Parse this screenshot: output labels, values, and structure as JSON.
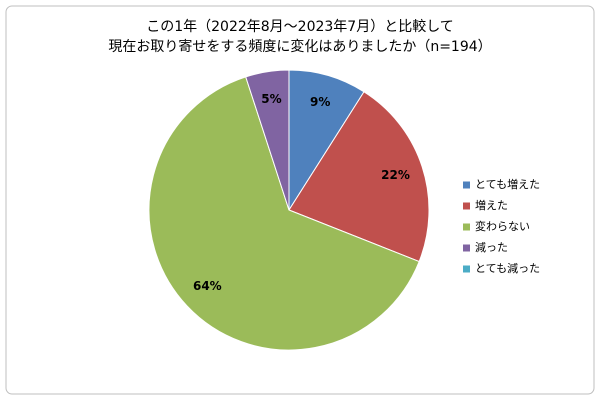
{
  "chart_data": {
    "type": "pie",
    "title": [
      "この1年（2022年8月～2023年7月）と比較して",
      "現在お取り寄せをする頻度に変化はありましたか（n=194）"
    ],
    "categories": [
      "とても増えた",
      "増えた",
      "変わらない",
      "減った",
      "とても減った"
    ],
    "values": [
      9,
      22,
      64,
      5,
      0
    ],
    "value_labels": [
      "9%",
      "22%",
      "64%",
      "5%",
      null
    ],
    "colors": [
      "#4f81bd",
      "#c0504d",
      "#9bbb59",
      "#8064a2",
      "#4bacc6"
    ],
    "legend": "right"
  }
}
